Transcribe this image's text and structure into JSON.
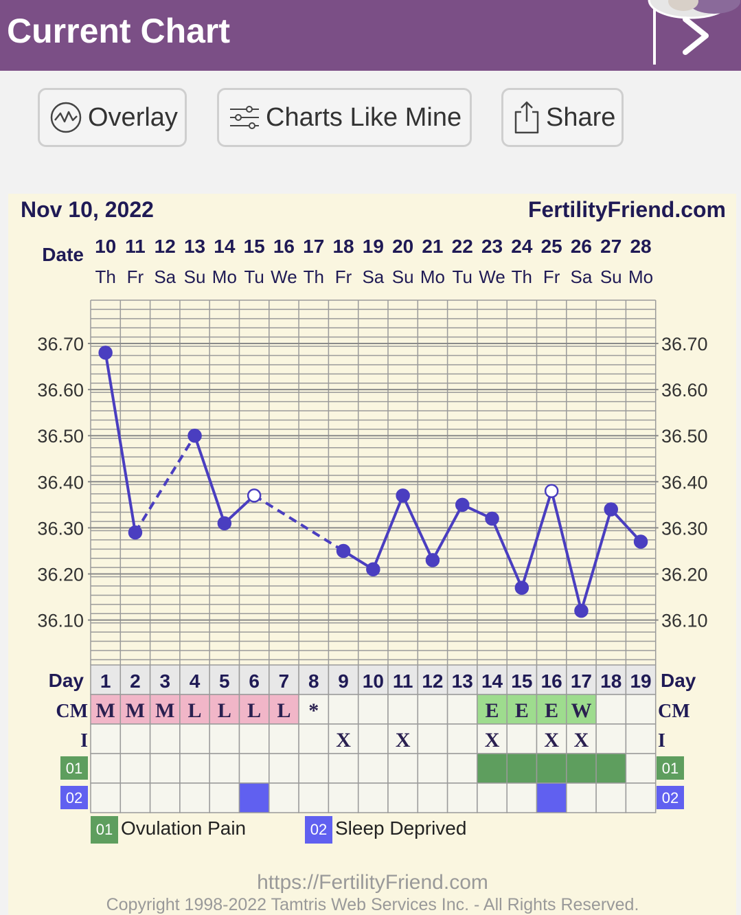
{
  "header": {
    "title": "Current Chart"
  },
  "toolbar": {
    "overlay_label": "Overlay",
    "charts_like_mine_label": "Charts Like Mine",
    "share_label": "Share"
  },
  "chart": {
    "date_label": "Nov 10, 2022",
    "site": "FertilityFriend.com",
    "row_date_label": "Date",
    "dates": [
      "10",
      "11",
      "12",
      "13",
      "14",
      "15",
      "16",
      "17",
      "18",
      "19",
      "20",
      "21",
      "22",
      "23",
      "24",
      "25",
      "26",
      "27",
      "28"
    ],
    "weekdays": [
      "Th",
      "Fr",
      "Sa",
      "Su",
      "Mo",
      "Tu",
      "We",
      "Th",
      "Fr",
      "Sa",
      "Su",
      "Mo",
      "Tu",
      "We",
      "Th",
      "Fr",
      "Sa",
      "Su",
      "Mo"
    ],
    "y_ticks": [
      "36.70",
      "36.60",
      "36.50",
      "36.40",
      "36.30",
      "36.20",
      "36.10"
    ],
    "row_day_label": "Day",
    "days": [
      "1",
      "2",
      "3",
      "4",
      "5",
      "6",
      "7",
      "8",
      "9",
      "10",
      "11",
      "12",
      "13",
      "14",
      "15",
      "16",
      "17",
      "18",
      "19"
    ],
    "row_cm_label": "CM",
    "cm": [
      "M",
      "M",
      "M",
      "L",
      "L",
      "L",
      "L",
      "*",
      "",
      "",
      "",
      "",
      "",
      "E",
      "E",
      "E",
      "W",
      "",
      ""
    ],
    "row_i_label": "I",
    "intercourse": [
      "",
      "",
      "",
      "",
      "",
      "",
      "",
      "",
      "X",
      "",
      "X",
      "",
      "",
      "X",
      "",
      "X",
      "X",
      "",
      ""
    ],
    "legend_01_code": "01",
    "legend_02_code": "02",
    "legend_01_label": "Ovulation Pain",
    "legend_02_label": "Sleep Deprived",
    "colors": {
      "line": "#4a3ec0",
      "cm_m": "#f1b6c8",
      "cm_e": "#9edc8e",
      "ovulation": "#5e9e5e",
      "sleep": "#6060f0"
    }
  },
  "chart_data": {
    "type": "line",
    "x": [
      1,
      2,
      3,
      4,
      5,
      6,
      7,
      8,
      9,
      10,
      11,
      12,
      13,
      14,
      15,
      16,
      17,
      18,
      19
    ],
    "series": [
      {
        "values": [
          36.68,
          36.29,
          null,
          36.5,
          36.31,
          36.37,
          null,
          null,
          36.25,
          36.21,
          36.37,
          36.23,
          36.35,
          36.32,
          36.17,
          36.38,
          36.12,
          36.34,
          36.27
        ],
        "open_points": [
          6,
          16
        ]
      }
    ],
    "ylim": [
      36.0,
      36.8
    ],
    "ovulation_pain_days": [
      14,
      15,
      16,
      17,
      18
    ],
    "sleep_deprived_days": [
      6,
      16
    ],
    "grid": true
  },
  "footer": {
    "url": "https://FertilityFriend.com",
    "copyright": "Copyright 1998-2022 Tamtris Web Services Inc. - All Rights Reserved."
  }
}
